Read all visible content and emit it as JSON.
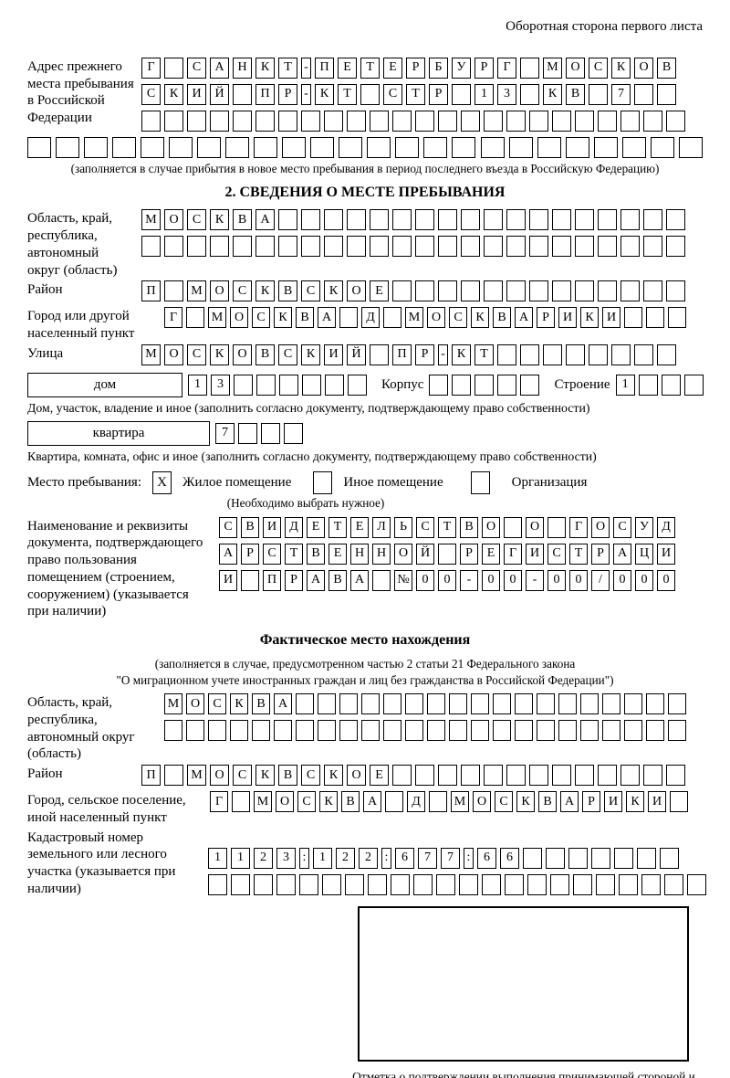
{
  "header": {
    "back_note": "Оборотная сторона первого листа"
  },
  "prev_address": {
    "label": "Адрес прежнего места пребывания в Российской Федерации",
    "row1": [
      "Г",
      "",
      "С",
      "А",
      "Н",
      "К",
      "Т",
      "-",
      "П",
      "Е",
      "Т",
      "Е",
      "Р",
      "Б",
      "У",
      "Р",
      "Г",
      "",
      "М",
      "О",
      "С",
      "К",
      "О",
      "В"
    ],
    "row2": [
      "С",
      "К",
      "И",
      "Й",
      "",
      "П",
      "Р",
      "-",
      "К",
      "Т",
      "",
      "С",
      "Т",
      "Р",
      "",
      "1",
      "3",
      "",
      "К",
      "В",
      "",
      "7",
      "",
      ""
    ],
    "row3": [
      "",
      "",
      "",
      "",
      "",
      "",
      "",
      "",
      "",
      "",
      "",
      "",
      "",
      "",
      "",
      "",
      "",
      "",
      "",
      "",
      "",
      "",
      "",
      ""
    ],
    "row4": [
      "",
      "",
      "",
      "",
      "",
      "",
      "",
      "",
      "",
      "",
      "",
      "",
      "",
      "",
      "",
      "",
      "",
      "",
      "",
      "",
      "",
      "",
      "",
      ""
    ],
    "note": "(заполняется в случае прибытия в новое место пребывания в период последнего въезда в Российскую Федерацию)"
  },
  "section2": {
    "title": "2. СВЕДЕНИЯ О МЕСТЕ ПРЕБЫВАНИЯ",
    "region": {
      "label": "Область, край, республика, автономный округ (область)",
      "row1": [
        "М",
        "О",
        "С",
        "К",
        "В",
        "А",
        "",
        "",
        "",
        "",
        "",
        "",
        "",
        "",
        "",
        "",
        "",
        "",
        "",
        "",
        "",
        "",
        "",
        ""
      ],
      "row2": [
        "",
        "",
        "",
        "",
        "",
        "",
        "",
        "",
        "",
        "",
        "",
        "",
        "",
        "",
        "",
        "",
        "",
        "",
        "",
        "",
        "",
        "",
        "",
        ""
      ]
    },
    "district": {
      "label": "Район",
      "row": [
        "П",
        "",
        "М",
        "О",
        "С",
        "К",
        "В",
        "С",
        "К",
        "О",
        "Е",
        "",
        "",
        "",
        "",
        "",
        "",
        "",
        "",
        "",
        "",
        "",
        "",
        ""
      ]
    },
    "city": {
      "label": "Город или другой населенный пункт",
      "row": [
        "Г",
        "",
        "М",
        "О",
        "С",
        "К",
        "В",
        "А",
        "",
        "Д",
        "",
        "М",
        "О",
        "С",
        "К",
        "В",
        "А",
        "Р",
        "И",
        "К",
        "И",
        "",
        "",
        ""
      ]
    },
    "street": {
      "label": "Улица",
      "row": [
        "М",
        "О",
        "С",
        "К",
        "О",
        "В",
        "С",
        "К",
        "И",
        "Й",
        "",
        "П",
        "Р",
        "-",
        "К",
        "Т",
        "",
        "",
        "",
        "",
        "",
        "",
        "",
        ""
      ]
    },
    "house": {
      "box_label": "дом",
      "cells": [
        "1",
        "3",
        "",
        "",
        "",
        "",
        "",
        ""
      ],
      "korpus_label": "Корпус",
      "korpus_cells": [
        "",
        "",
        "",
        "",
        ""
      ],
      "stroenie_label": "Строение",
      "stroenie_cells": [
        "1",
        "",
        "",
        ""
      ],
      "note": "Дом, участок, владение и иное (заполнить согласно документу, подтверждающему право собственности)"
    },
    "apartment": {
      "box_label": "квартира",
      "cells": [
        "7",
        "",
        "",
        ""
      ],
      "note": "Квартира, комната, офис и иное (заполнить согласно документу, подтверждающему право собственности)"
    },
    "stay": {
      "label": "Место пребывания:",
      "opt1": {
        "mark": "X",
        "label": "Жилое помещение"
      },
      "opt2": {
        "mark": "",
        "label": "Иное помещение"
      },
      "opt3": {
        "mark": "",
        "label": "Организация"
      },
      "note": "(Необходимо выбрать нужное)"
    },
    "document": {
      "label": "Наименование и реквизиты документа, подтверждающего право пользования помещением (строением, сооружением) (указывается при наличии)",
      "row1": [
        "С",
        "В",
        "И",
        "Д",
        "Е",
        "Т",
        "Е",
        "Л",
        "Ь",
        "С",
        "Т",
        "В",
        "О",
        "",
        "О",
        "",
        "Г",
        "О",
        "С",
        "У",
        "Д"
      ],
      "row2": [
        "А",
        "Р",
        "С",
        "Т",
        "В",
        "Е",
        "Н",
        "Н",
        "О",
        "Й",
        "",
        "Р",
        "Е",
        "Г",
        "И",
        "С",
        "Т",
        "Р",
        "А",
        "Ц",
        "И"
      ],
      "row3": [
        "И",
        "",
        "П",
        "Р",
        "А",
        "В",
        "А",
        "",
        "№",
        "0",
        "0",
        "-",
        "0",
        "0",
        "-",
        "0",
        "0",
        "/",
        "0",
        "0",
        "0"
      ]
    }
  },
  "actual": {
    "title": "Фактическое место нахождения",
    "note1": "(заполняется в случае, предусмотренном частью 2 статьи 21 Федерального закона",
    "note2": "\"О миграционном учете иностранных граждан и лиц без гражданства в Российской Федерации\")",
    "region": {
      "label": "Область, край, республика, автономный округ (область)",
      "row1": [
        "М",
        "О",
        "С",
        "К",
        "В",
        "А",
        "",
        "",
        "",
        "",
        "",
        "",
        "",
        "",
        "",
        "",
        "",
        "",
        "",
        "",
        "",
        "",
        "",
        ""
      ],
      "row2": [
        "",
        "",
        "",
        "",
        "",
        "",
        "",
        "",
        "",
        "",
        "",
        "",
        "",
        "",
        "",
        "",
        "",
        "",
        "",
        "",
        "",
        "",
        "",
        ""
      ]
    },
    "district": {
      "label": "Район",
      "row": [
        "П",
        "",
        "М",
        "О",
        "С",
        "К",
        "В",
        "С",
        "К",
        "О",
        "Е",
        "",
        "",
        "",
        "",
        "",
        "",
        "",
        "",
        "",
        "",
        "",
        "",
        ""
      ]
    },
    "city": {
      "label": "Город, сельское поселение, иной населенный пункт",
      "row": [
        "Г",
        "",
        "М",
        "О",
        "С",
        "К",
        "В",
        "А",
        "",
        "Д",
        "",
        "М",
        "О",
        "С",
        "К",
        "В",
        "А",
        "Р",
        "И",
        "К",
        "И",
        ""
      ]
    },
    "cadastral": {
      "label": "Кадастровый номер земельного или лесного участка (указывается при наличии)",
      "row1": [
        "1",
        "1",
        "2",
        "3",
        ":",
        "1",
        "2",
        "2",
        ":",
        "6",
        "7",
        "7",
        ":",
        "6",
        "6",
        "",
        "",
        "",
        "",
        "",
        "",
        ""
      ],
      "row2": [
        "",
        "",
        "",
        "",
        "",
        "",
        "",
        "",
        "",
        "",
        "",
        "",
        "",
        "",
        "",
        "",
        "",
        "",
        "",
        "",
        "",
        ""
      ]
    }
  },
  "stamp": {
    "caption": "Отметка о подтверждении выполнения принимающей стороной и иностранным гражданином или лицом без гражданства действий, необходимых для его постановки на учет по месту пребывания"
  }
}
